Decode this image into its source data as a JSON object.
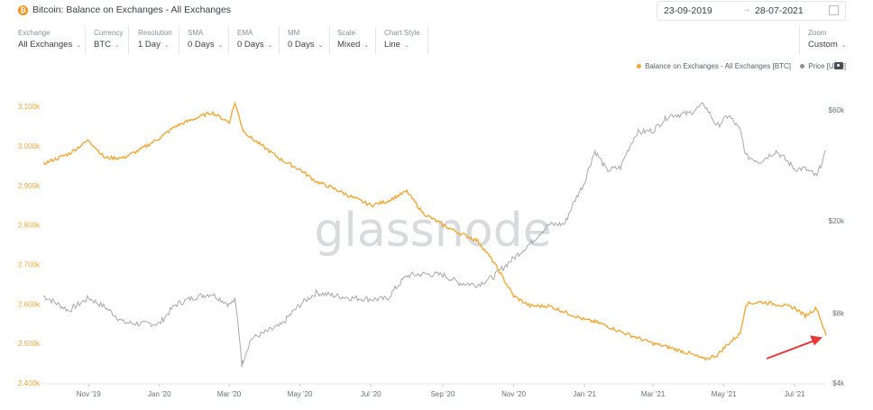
{
  "header": {
    "icon": "bitcoin-icon",
    "title": "Bitcoin: Balance on Exchanges - All Exchanges",
    "date_start": "23-09-2019",
    "date_separator": "→",
    "date_end": "28-07-2021"
  },
  "controls": [
    {
      "label": "Exchange",
      "value": "All Exchanges"
    },
    {
      "label": "Currency",
      "value": "BTC"
    },
    {
      "label": "Resolution",
      "value": "1 Day"
    },
    {
      "label": "SMA",
      "value": "0 Days"
    },
    {
      "label": "EMA",
      "value": "0 Days"
    },
    {
      "label": "MM",
      "value": "0 Days"
    },
    {
      "label": "Scale",
      "value": "Mixed"
    },
    {
      "label": "Chart Style",
      "value": "Line"
    }
  ],
  "zoom": {
    "label": "Zoom",
    "value": "Custom"
  },
  "watermark": "glassnode",
  "colors": {
    "balance": "#f2a93a",
    "price": "#a7a9ad",
    "arrow": "#e53935"
  },
  "chart_data": {
    "type": "line",
    "title": "Bitcoin: Balance on Exchanges - All Exchanges",
    "x_tick_labels": [
      "Nov '19",
      "Jan '20",
      "Mar '20",
      "May '20",
      "Jul '20",
      "Sep '20",
      "Nov '20",
      "Jan '21",
      "Mar '21",
      "May '21",
      "Jul '21"
    ],
    "x_dates": [
      "2019-09-23",
      "2019-10-15",
      "2019-11-01",
      "2019-11-15",
      "2019-12-01",
      "2019-12-15",
      "2020-01-01",
      "2020-01-15",
      "2020-02-01",
      "2020-02-15",
      "2020-03-01",
      "2020-03-06",
      "2020-03-12",
      "2020-03-13",
      "2020-03-20",
      "2020-04-01",
      "2020-04-15",
      "2020-05-01",
      "2020-05-15",
      "2020-06-01",
      "2020-06-15",
      "2020-07-01",
      "2020-07-15",
      "2020-08-01",
      "2020-08-15",
      "2020-09-01",
      "2020-09-15",
      "2020-10-01",
      "2020-10-15",
      "2020-11-01",
      "2020-11-15",
      "2020-12-01",
      "2020-12-15",
      "2021-01-01",
      "2021-01-10",
      "2021-01-20",
      "2021-02-01",
      "2021-02-15",
      "2021-03-01",
      "2021-03-15",
      "2021-04-01",
      "2021-04-14",
      "2021-04-25",
      "2021-05-05",
      "2021-05-15",
      "2021-05-20",
      "2021-06-01",
      "2021-06-15",
      "2021-07-01",
      "2021-07-10",
      "2021-07-20",
      "2021-07-28"
    ],
    "series": [
      {
        "name": "Balance on Exchanges - All Exchanges [BTC]",
        "axis": "left",
        "values": [
          2955000,
          2980000,
          3015000,
          2970000,
          2970000,
          2990000,
          3020000,
          3050000,
          3070000,
          3085000,
          3060000,
          3110000,
          3050000,
          3040000,
          3020000,
          2995000,
          2965000,
          2940000,
          2910000,
          2890000,
          2870000,
          2850000,
          2860000,
          2885000,
          2830000,
          2800000,
          2780000,
          2760000,
          2705000,
          2620000,
          2595000,
          2595000,
          2580000,
          2560000,
          2555000,
          2545000,
          2530000,
          2515000,
          2500000,
          2490000,
          2475000,
          2460000,
          2470000,
          2500000,
          2525000,
          2600000,
          2605000,
          2600000,
          2590000,
          2570000,
          2590000,
          2520000
        ]
      },
      {
        "name": "Price [USD]",
        "axis": "right",
        "values": [
          9500,
          8200,
          9300,
          8500,
          7300,
          7200,
          7200,
          8700,
          9400,
          9700,
          8700,
          9100,
          4800,
          5000,
          6200,
          6600,
          7100,
          8700,
          9800,
          9500,
          9300,
          9200,
          9200,
          11600,
          11800,
          11700,
          10800,
          10600,
          11500,
          13800,
          15900,
          19200,
          19400,
          29300,
          40000,
          33000,
          34000,
          48000,
          49000,
          57000,
          58000,
          63500,
          51000,
          57000,
          49000,
          38000,
          36000,
          40000,
          33500,
          33500,
          31000,
          40000
        ]
      }
    ],
    "left_axis": {
      "ticks": [
        2400000,
        2500000,
        2600000,
        2700000,
        2800000,
        2900000,
        3000000,
        3100000
      ],
      "tick_labels": [
        "2.400k",
        "2.500k",
        "2.600k",
        "2.700k",
        "2.800k",
        "2.900k",
        "3.000k",
        "3.100k"
      ],
      "ylim": [
        2400000,
        3130000
      ]
    },
    "right_axis": {
      "scale": "log",
      "ticks": [
        4000,
        8000,
        20000,
        60000
      ],
      "tick_labels": [
        "$4k",
        "$8k",
        "$20k",
        "$60k"
      ]
    },
    "legend": {
      "placement": "top-right",
      "entries": [
        "Balance on Exchanges - All Exchanges [BTC]",
        "Price [USD]"
      ]
    },
    "annotation": {
      "type": "arrow",
      "target_date": "2021-07-28",
      "color": "#e53935"
    },
    "grid": false
  }
}
